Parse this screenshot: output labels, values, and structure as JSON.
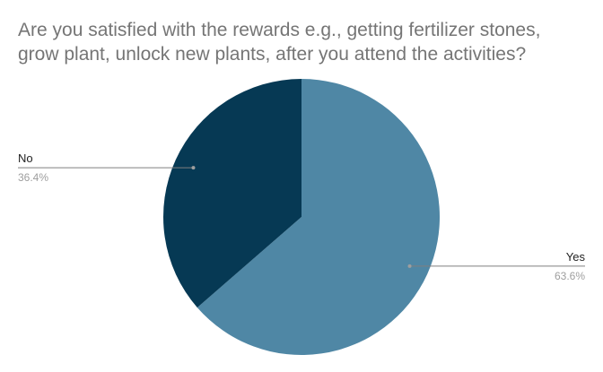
{
  "chart_data": {
    "type": "pie",
    "title": "Are you satisfied with the rewards e.g., getting fertilizer stones,\ngrow plant, unlock new plants, after you attend the activities?",
    "slices": [
      {
        "label": "Yes",
        "value": 63.6,
        "value_label": "63.6%",
        "color": "#4f87a5"
      },
      {
        "label": "No",
        "value": 36.4,
        "value_label": "36.4%",
        "color": "#063954"
      }
    ],
    "legend": "none"
  }
}
